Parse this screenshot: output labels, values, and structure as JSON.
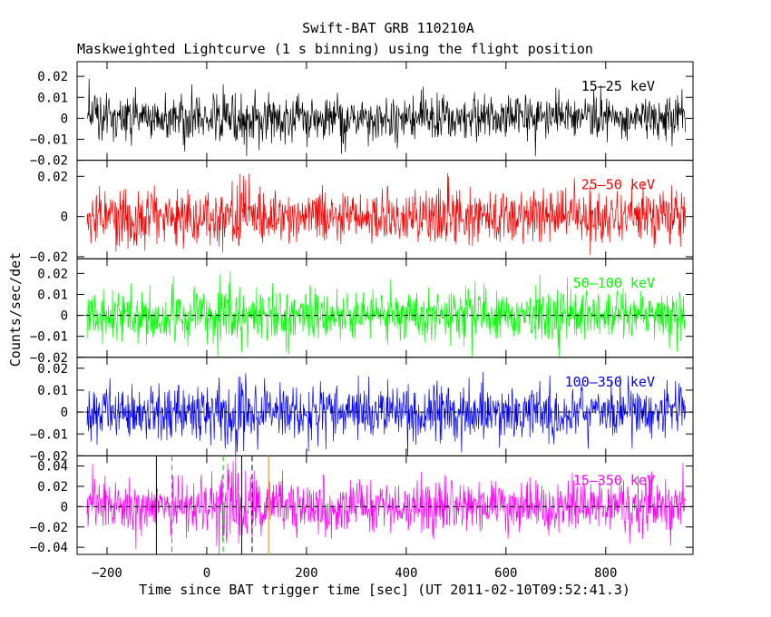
{
  "chart_data": {
    "type": "line",
    "title": "Swift-BAT GRB 110210A",
    "subtitle": "Maskweighted Lightcurve (1 s binning) using the flight position",
    "xlabel": "Time since BAT trigger time [sec] (UT 2011-02-10T09:52:41.3)",
    "ylabel": "Counts/sec/det",
    "xlim": [
      -260,
      975
    ],
    "x_ticks": [
      "−200",
      "0",
      "200",
      "400",
      "600",
      "800"
    ],
    "x_tick_values": [
      -200,
      0,
      200,
      400,
      600,
      800
    ],
    "grid": false,
    "x_start": -240,
    "x_end": 960,
    "x_step": 1,
    "panels": [
      {
        "band": "15–25 keV",
        "color": "#000000",
        "ylim": [
          -0.02,
          0.027
        ],
        "y_ticks": [
          "0.02",
          "0.01",
          "0",
          "−0.01",
          "−0.02"
        ],
        "y_tick_values": [
          0.02,
          0.01,
          0,
          -0.01,
          -0.02
        ],
        "noise_sigma": 0.0055,
        "zero_line": false
      },
      {
        "band": "25–50 keV",
        "color": "#ff0000",
        "ylim": [
          -0.021,
          0.028
        ],
        "y_ticks": [
          "0.02",
          "0",
          "−0.02"
        ],
        "y_tick_values": [
          0.02,
          0,
          -0.02
        ],
        "noise_sigma": 0.0065,
        "zero_line": false
      },
      {
        "band": "50–100 keV",
        "color": "#00ff00",
        "ylim": [
          -0.02,
          0.027
        ],
        "y_ticks": [
          "0.02",
          "0.01",
          "0",
          "−0.01",
          "−0.02"
        ],
        "y_tick_values": [
          0.02,
          0.01,
          0,
          -0.01,
          -0.02
        ],
        "noise_sigma": 0.006,
        "zero_line": true
      },
      {
        "band": "100–350 keV",
        "color": "#0000ff",
        "ylim": [
          -0.02,
          0.025
        ],
        "y_ticks": [
          "0.02",
          "0.01",
          "0",
          "−0.01",
          "−0.02"
        ],
        "y_tick_values": [
          0.02,
          0.01,
          0,
          -0.01,
          -0.02
        ],
        "noise_sigma": 0.006,
        "zero_line": true
      },
      {
        "band": "15–350 keV",
        "color": "#ff00ff",
        "ylim": [
          -0.047,
          0.05
        ],
        "y_ticks": [
          "0.04",
          "0.02",
          "0",
          "−0.02",
          "−0.04"
        ],
        "y_tick_values": [
          0.04,
          0.02,
          0,
          -0.02,
          -0.04
        ],
        "noise_sigma": 0.013,
        "zero_line": true
      }
    ],
    "markers": [
      {
        "x": -101,
        "color": "#000000",
        "style": "solid"
      },
      {
        "x": -70,
        "color": "#00cc00",
        "style": "dashed"
      },
      {
        "x": 33,
        "color": "#00cc00",
        "style": "dashed"
      },
      {
        "x": 70,
        "color": "#000000",
        "style": "solid"
      },
      {
        "x": 91,
        "color": "#000000",
        "style": "dashed"
      },
      {
        "x": 124,
        "color": "#ff8000",
        "style": "solid"
      }
    ],
    "burst_feature": {
      "start": 20,
      "end": 80,
      "amplitude_factor": 0.5
    }
  }
}
